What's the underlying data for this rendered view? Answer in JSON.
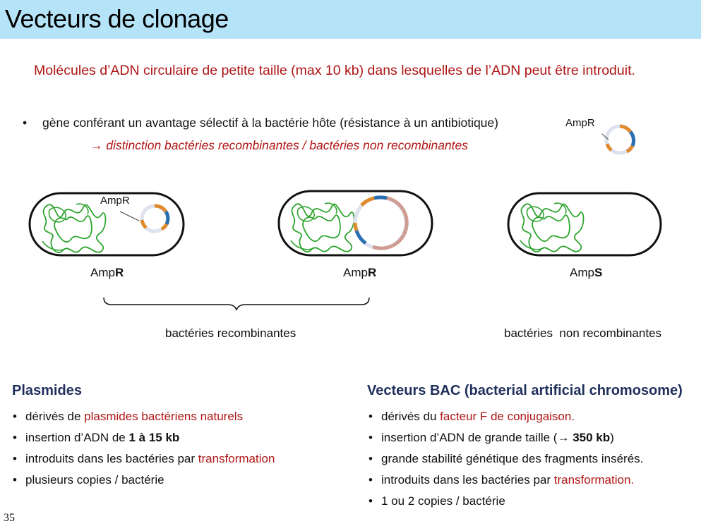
{
  "header": {
    "title": "Vecteurs de clonage"
  },
  "subtitle": "Molécules d’ADN circulaire de petite taille (max 10 kb) dans lesquelles de l’ADN peut être introduit.",
  "selection": {
    "bullet": "•",
    "text": "gène conférant un avantage sélectif à la bactérie hôte (résistance à un antibiotique)",
    "consequence": "→ distinction bactéries recombinantes / bactéries non recombinantes",
    "plasmid_label": "AmpR"
  },
  "cells": [
    {
      "plasmid_label": "AmpR",
      "phenotype_prefix": "Amp",
      "phenotype_suffix": "R"
    },
    {
      "phenotype_prefix": "Amp",
      "phenotype_suffix": "R"
    },
    {
      "phenotype_prefix": "Amp",
      "phenotype_suffix": "S"
    }
  ],
  "groups": {
    "recombinant": "bactéries recombinantes",
    "non_recombinant": "bactéries  non recombinantes"
  },
  "plasmides": {
    "heading": "Plasmides",
    "items": [
      {
        "pre": "dérivés de ",
        "red": "plasmides bactériens naturels",
        "post": ""
      },
      {
        "pre": "insertion d’ADN de ",
        "bold": "1 à 15 kb",
        "post": ""
      },
      {
        "pre": "introduits dans les bactéries par ",
        "red": "transformation",
        "post": ""
      },
      {
        "pre": "plusieurs copies / bactérie"
      }
    ]
  },
  "bac": {
    "heading": "Vecteurs BAC (bacterial artificial chromosome)",
    "items": [
      {
        "pre": "dérivés du ",
        "red": "facteur F de conjugaison",
        "post": "."
      },
      {
        "pre": "insertion d’ADN de grande taille (→ ",
        "bold": "350 kb",
        "post": ")"
      },
      {
        "pre": "grande stabilité génétique des fragments insérés."
      },
      {
        "pre": "introduits dans les bactéries par ",
        "red": "transformation",
        "post": "."
      },
      {
        "pre": "1 ou 2 copies / bactérie"
      }
    ]
  },
  "page_number": "35",
  "colors": {
    "title_bar": "#b5e3f8",
    "accent_red": "#b01515",
    "heading_navy": "#1f2f5c",
    "chromosome_green": "#2fa52f",
    "plasmid_orange": "#e08a2c",
    "plasmid_blue": "#2a6fb0",
    "insert_pink": "#cf9c92"
  }
}
